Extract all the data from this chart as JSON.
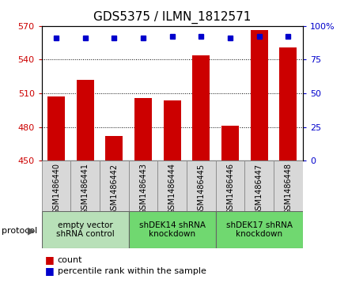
{
  "title": "GDS5375 / ILMN_1812571",
  "samples": [
    "GSM1486440",
    "GSM1486441",
    "GSM1486442",
    "GSM1486443",
    "GSM1486444",
    "GSM1486445",
    "GSM1486446",
    "GSM1486447",
    "GSM1486448"
  ],
  "counts": [
    507,
    522,
    472,
    506,
    504,
    544,
    481,
    566,
    551
  ],
  "percentiles": [
    91,
    91,
    91,
    91,
    92,
    92,
    91,
    92,
    92
  ],
  "ylim_left": [
    450,
    570
  ],
  "ylim_right": [
    0,
    100
  ],
  "yticks_left": [
    450,
    480,
    510,
    540,
    570
  ],
  "yticks_right": [
    0,
    25,
    50,
    75,
    100
  ],
  "bar_color": "#cc0000",
  "dot_color": "#0000cc",
  "bar_width": 0.6,
  "group_defs": [
    {
      "start": 0,
      "end": 2,
      "label": "empty vector\nshRNA control",
      "color": "#b8e0b8"
    },
    {
      "start": 3,
      "end": 5,
      "label": "shDEK14 shRNA\nknockdown",
      "color": "#70d870"
    },
    {
      "start": 6,
      "end": 8,
      "label": "shDEK17 shRNA\nknockdown",
      "color": "#70d870"
    }
  ],
  "protocol_label": "protocol",
  "legend_count_label": "count",
  "legend_pct_label": "percentile rank within the sample",
  "left_label_color": "#cc0000",
  "right_label_color": "#0000cc",
  "sample_box_color": "#d8d8d8",
  "grid_lines": [
    480,
    510,
    540
  ]
}
